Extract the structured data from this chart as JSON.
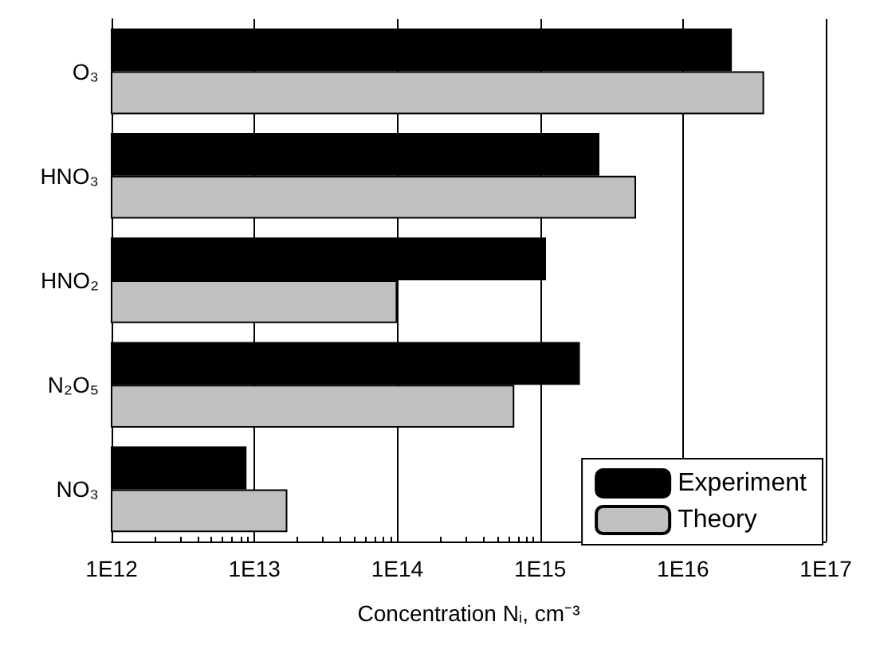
{
  "chart_data": {
    "type": "bar",
    "orientation": "horizontal",
    "log": "x",
    "categories": [
      "O₃",
      "HNO₃",
      "HNO₂",
      "N₂O₅",
      "NO₃"
    ],
    "series": [
      {
        "name": "Experiment",
        "color": "#000000",
        "values": [
          2.2e+16,
          2600000000000000.0,
          1100000000000000.0,
          1900000000000000.0,
          8800000000000.0
        ]
      },
      {
        "name": "Theory",
        "color": "#c0c0c0",
        "values": [
          3.7e+16,
          4700000000000000.0,
          100000000000000.0,
          660000000000000.0,
          17000000000000.0
        ]
      }
    ],
    "xlabel": "Concentration Nᵢ, cm⁻³",
    "xlim": [
      1000000000000.0,
      1e+17
    ],
    "xticks": [
      {
        "value": 1000000000000.0,
        "label": "1E12"
      },
      {
        "value": 10000000000000.0,
        "label": "1E13"
      },
      {
        "value": 100000000000000.0,
        "label": "1E14"
      },
      {
        "value": 1000000000000000.0,
        "label": "1E15"
      },
      {
        "value": 1e+16,
        "label": "1E16"
      },
      {
        "value": 1e+17,
        "label": "1E17"
      }
    ],
    "grid": "x",
    "legend": "bottom right"
  }
}
